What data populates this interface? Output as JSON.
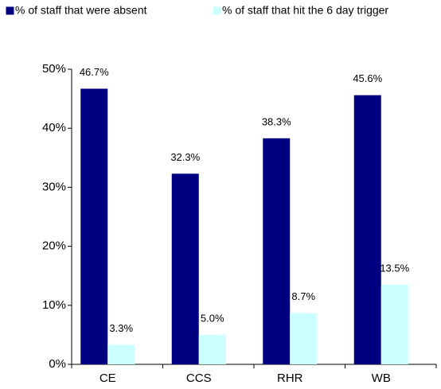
{
  "chart_data": {
    "type": "bar",
    "categories": [
      "CE",
      "CCS",
      "RHR",
      "WB"
    ],
    "series": [
      {
        "name": "% of staff that were absent",
        "color": "#000080",
        "values": [
          46.7,
          32.3,
          38.3,
          45.6
        ],
        "value_labels": [
          "46.7%",
          "32.3%",
          "38.3%",
          "45.6%"
        ]
      },
      {
        "name": "% of staff that hit the 6 day trigger",
        "color": "#ccffff",
        "values": [
          3.3,
          5.0,
          8.7,
          13.5
        ],
        "value_labels": [
          "3.3%",
          "5.0%",
          "8.7%",
          "13.5%"
        ]
      }
    ],
    "ylim": [
      0,
      50
    ],
    "yticks": [
      {
        "value": 0,
        "label": "0%"
      },
      {
        "value": 10,
        "label": "10%"
      },
      {
        "value": 20,
        "label": "20%"
      },
      {
        "value": 30,
        "label": "30%"
      },
      {
        "value": 40,
        "label": "40%"
      },
      {
        "value": 50,
        "label": "50%"
      }
    ],
    "grid": false,
    "legend": "top"
  }
}
